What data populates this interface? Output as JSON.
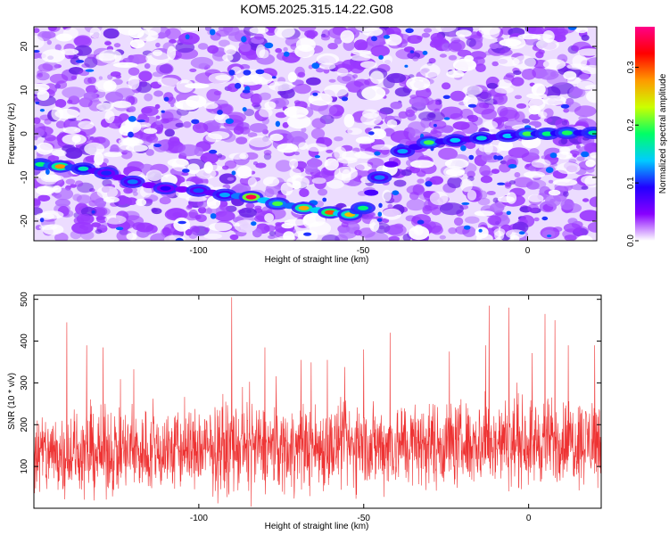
{
  "title": "KOM5.2025.315.14.22.G08",
  "chart_data": [
    {
      "type": "heatmap",
      "xlabel": "Height of straight line (km)",
      "ylabel": "Frequency (Hz)",
      "xlim": [
        -150,
        21
      ],
      "ylim": [
        -24.5,
        24.5
      ],
      "x_ticks": [
        -100,
        -50,
        0
      ],
      "y_ticks": [
        -20,
        -10,
        0,
        10,
        20
      ],
      "colorbar": {
        "label": "Normalized spectral amplitude",
        "range": [
          0.0,
          0.37
        ],
        "ticks": [
          "0.0",
          "0.1",
          "0.2",
          "0.3"
        ],
        "tick_values": [
          0.0,
          0.1,
          0.2,
          0.3
        ],
        "colors": [
          "#ffffff",
          "#8800ff",
          "#2200ff",
          "#00ccff",
          "#00ff66",
          "#ccff00",
          "#ff9900",
          "#ff0000",
          "#ff0088"
        ]
      },
      "ridge": {
        "x": [
          -148,
          -142,
          -135,
          -128,
          -120,
          -110,
          -100,
          -92,
          -84,
          -76,
          -68,
          -60,
          -54,
          -50,
          -45,
          -38,
          -30,
          -22,
          -14,
          -6,
          0,
          6,
          12,
          20
        ],
        "y": [
          -7,
          -7.5,
          -8,
          -9,
          -11,
          -12.5,
          -13,
          -14,
          -14.5,
          -16,
          -17,
          -18,
          -18.5,
          -17,
          -10,
          -4,
          -2,
          -1.5,
          -1,
          -0.5,
          0,
          0,
          0.2,
          0.2
        ],
        "amplitude": [
          0.18,
          0.28,
          0.16,
          0.1,
          0.12,
          0.09,
          0.11,
          0.13,
          0.35,
          0.2,
          0.27,
          0.3,
          0.26,
          0.18,
          0.12,
          0.13,
          0.2,
          0.14,
          0.15,
          0.14,
          0.2,
          0.18,
          0.19,
          0.17
        ]
      }
    },
    {
      "type": "line",
      "xlabel": "Height of straight line (km)",
      "ylabel": "SNR (10 * v/v)",
      "xlim": [
        -150,
        22
      ],
      "ylim": [
        0,
        510
      ],
      "x_ticks": [
        -100,
        -50,
        0
      ],
      "y_ticks": [
        100,
        200,
        300,
        400,
        500
      ],
      "series": [
        {
          "color": "#ee3333",
          "baseline": 130,
          "spread": 90,
          "num_samples": 2000
        }
      ],
      "peaks": [
        {
          "x": -149,
          "y": 210
        },
        {
          "x": -140,
          "y": 445
        },
        {
          "x": -134,
          "y": 390
        },
        {
          "x": -129,
          "y": 385
        },
        {
          "x": -90,
          "y": 505
        },
        {
          "x": -80,
          "y": 385
        },
        {
          "x": -69,
          "y": 355
        },
        {
          "x": -61,
          "y": 355
        },
        {
          "x": -50,
          "y": 380
        },
        {
          "x": -42,
          "y": 420
        },
        {
          "x": -24,
          "y": 375
        },
        {
          "x": -13,
          "y": 390
        },
        {
          "x": -12,
          "y": 485
        },
        {
          "x": -6,
          "y": 480
        },
        {
          "x": 5,
          "y": 465
        },
        {
          "x": 8,
          "y": 450
        },
        {
          "x": 12,
          "y": 390
        },
        {
          "x": 20,
          "y": 390
        }
      ]
    }
  ]
}
